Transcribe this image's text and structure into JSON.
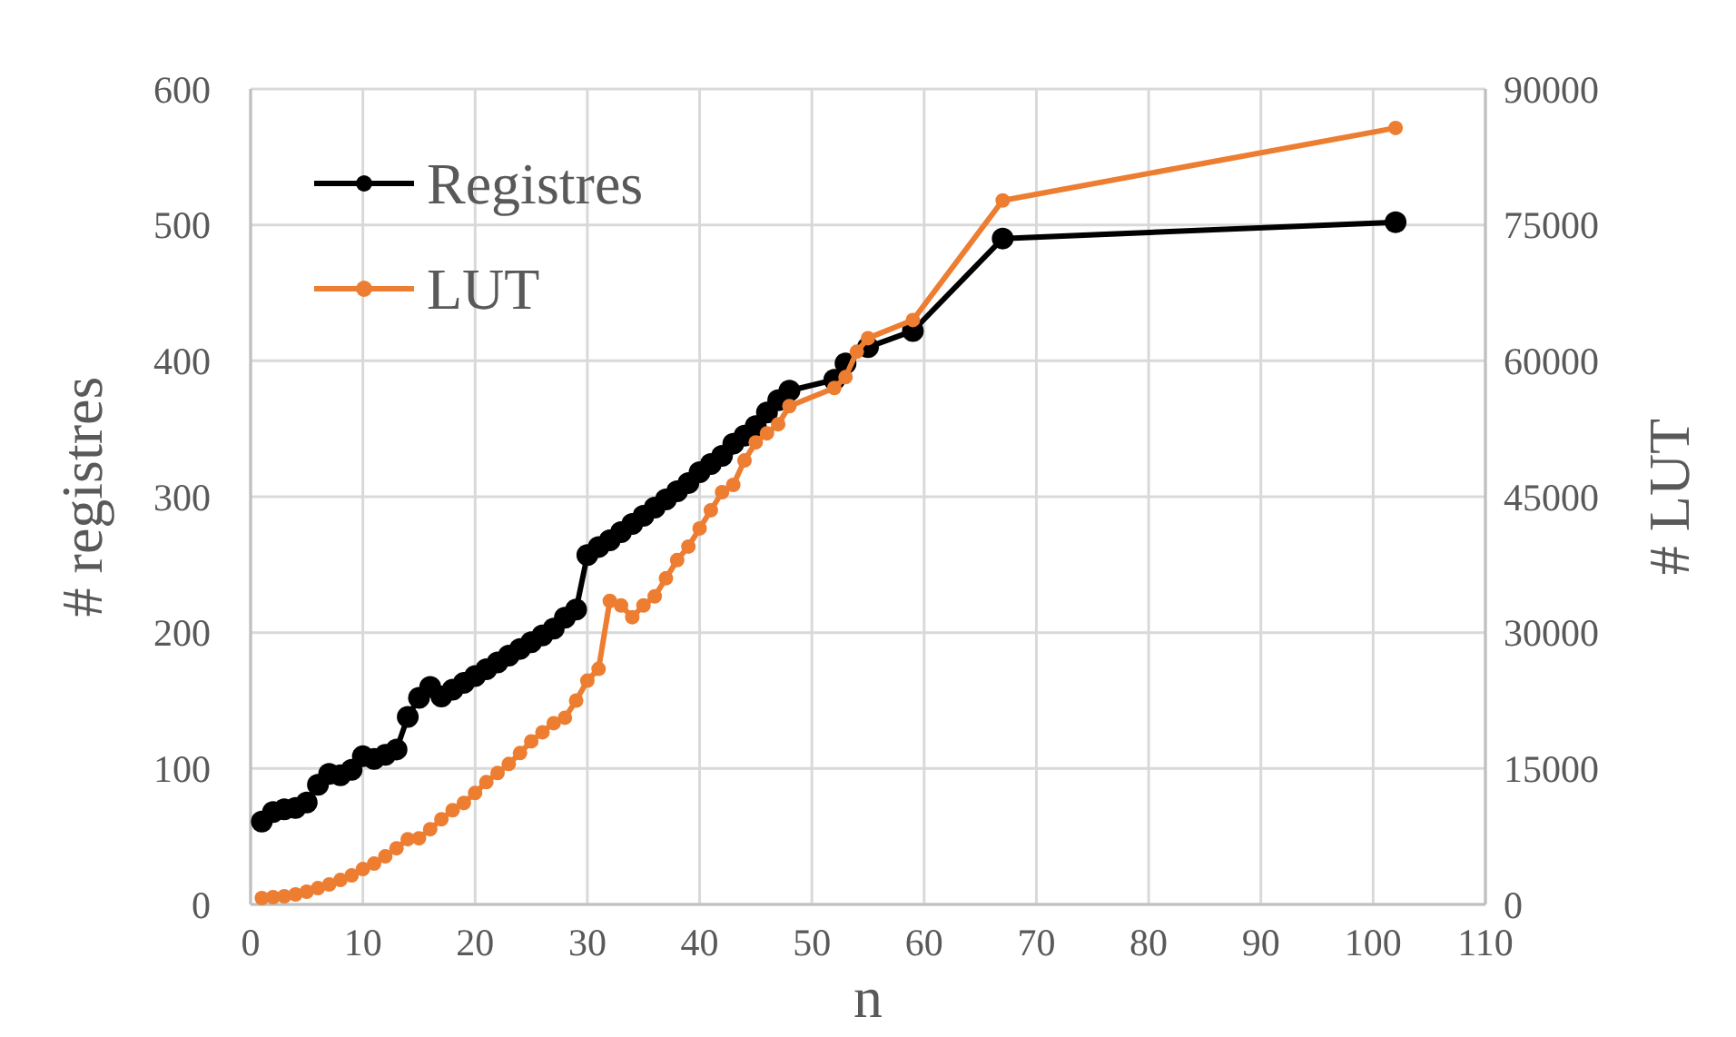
{
  "chart_data": {
    "type": "line",
    "xlabel": "n",
    "ylabel": "# registres",
    "y2label": "# LUT",
    "xlim": [
      0,
      110
    ],
    "xticks": [
      0,
      10,
      20,
      30,
      40,
      50,
      60,
      70,
      80,
      90,
      100,
      110
    ],
    "ylim": [
      0,
      600
    ],
    "yticks": [
      0,
      100,
      200,
      300,
      400,
      500,
      600
    ],
    "y2lim": [
      0,
      90000
    ],
    "y2ticks": [
      0,
      15000,
      30000,
      45000,
      60000,
      75000,
      90000
    ],
    "grid": true,
    "legend": "top left",
    "marker": "circle",
    "series": [
      {
        "name": "Registres",
        "color": "#000000",
        "x": [
          1,
          2,
          3,
          4,
          5,
          6,
          7,
          8,
          9,
          10,
          11,
          12,
          13,
          14,
          15,
          16,
          17,
          18,
          19,
          20,
          21,
          22,
          23,
          24,
          25,
          26,
          27,
          28,
          29,
          30,
          31,
          32,
          33,
          34,
          35,
          36,
          37,
          38,
          39,
          40,
          41,
          42,
          43,
          44,
          45,
          46,
          47,
          48,
          52,
          53,
          55,
          59,
          67,
          102
        ],
        "values": [
          61,
          68,
          70,
          71,
          75,
          88,
          96,
          95,
          99,
          109,
          107,
          110,
          114,
          138,
          152,
          160,
          153,
          158,
          163,
          168,
          173,
          178,
          183,
          188,
          193,
          198,
          203,
          211,
          217,
          257,
          263,
          268,
          274,
          280,
          286,
          292,
          298,
          304,
          310,
          318,
          324,
          330,
          339,
          345,
          352,
          362,
          371,
          378,
          386,
          398,
          410,
          422,
          490,
          502
        ]
      },
      {
        "name": "LUT",
        "color": "#ed7d31",
        "axis": "y2",
        "x": [
          1,
          2,
          3,
          4,
          5,
          6,
          7,
          8,
          9,
          10,
          11,
          12,
          13,
          14,
          15,
          16,
          17,
          18,
          19,
          20,
          21,
          22,
          23,
          24,
          25,
          26,
          27,
          28,
          29,
          30,
          31,
          32,
          33,
          34,
          35,
          36,
          37,
          38,
          39,
          40,
          41,
          42,
          43,
          44,
          45,
          46,
          47,
          48,
          52,
          53,
          54,
          55,
          59,
          67,
          102
        ],
        "values": [
          700,
          800,
          900,
          1100,
          1400,
          1800,
          2200,
          2700,
          3200,
          3900,
          4500,
          5300,
          6200,
          7200,
          7300,
          8300,
          9400,
          10400,
          11200,
          12300,
          13500,
          14500,
          15500,
          16700,
          18000,
          19000,
          20000,
          20600,
          22500,
          24700,
          26000,
          33500,
          33000,
          31700,
          33000,
          34000,
          36000,
          38000,
          39500,
          41500,
          43500,
          45500,
          46300,
          49000,
          51000,
          52000,
          53000,
          55000,
          57000,
          58200,
          61000,
          62500,
          64500,
          77700,
          85700
        ]
      }
    ]
  }
}
